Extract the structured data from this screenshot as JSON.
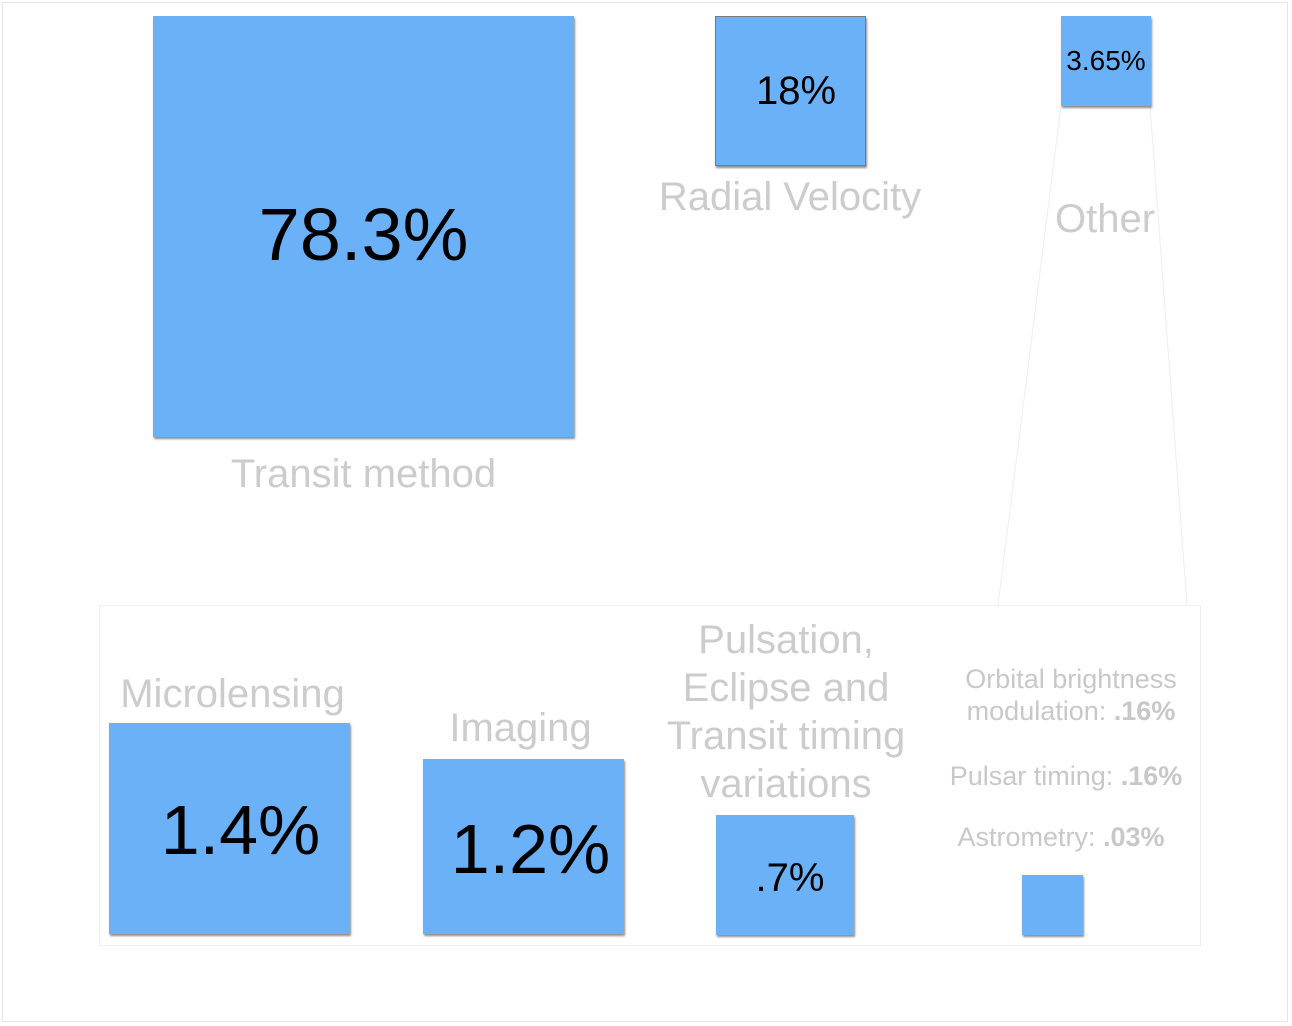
{
  "chart_data": {
    "type": "proportional-square",
    "categories": [
      "Transit method",
      "Radial Velocity",
      "Other"
    ],
    "values": [
      78.3,
      18,
      3.65
    ],
    "value_labels": [
      "78.3%",
      "18%",
      "3.65%"
    ],
    "breakdown": {
      "parent": "Other",
      "categories": [
        "Microlensing",
        "Imaging",
        "Pulsation, Eclipse and Transit timing variations"
      ],
      "values": [
        1.4,
        1.2,
        0.7
      ],
      "value_labels": [
        "1.4%",
        "1.2%",
        ".7%"
      ],
      "small_items": [
        {
          "name": "Orbital brightness modulation:",
          "value_label": ".16%",
          "value": 0.16
        },
        {
          "name": "Pulsar timing:",
          "value_label": ".16%",
          "value": 0.16
        },
        {
          "name": "Astrometry:",
          "value_label": ".03%",
          "value": 0.03
        }
      ]
    },
    "colors": {
      "square": "#6ab1f7",
      "label": "#cccccc",
      "value": "#000000"
    }
  }
}
